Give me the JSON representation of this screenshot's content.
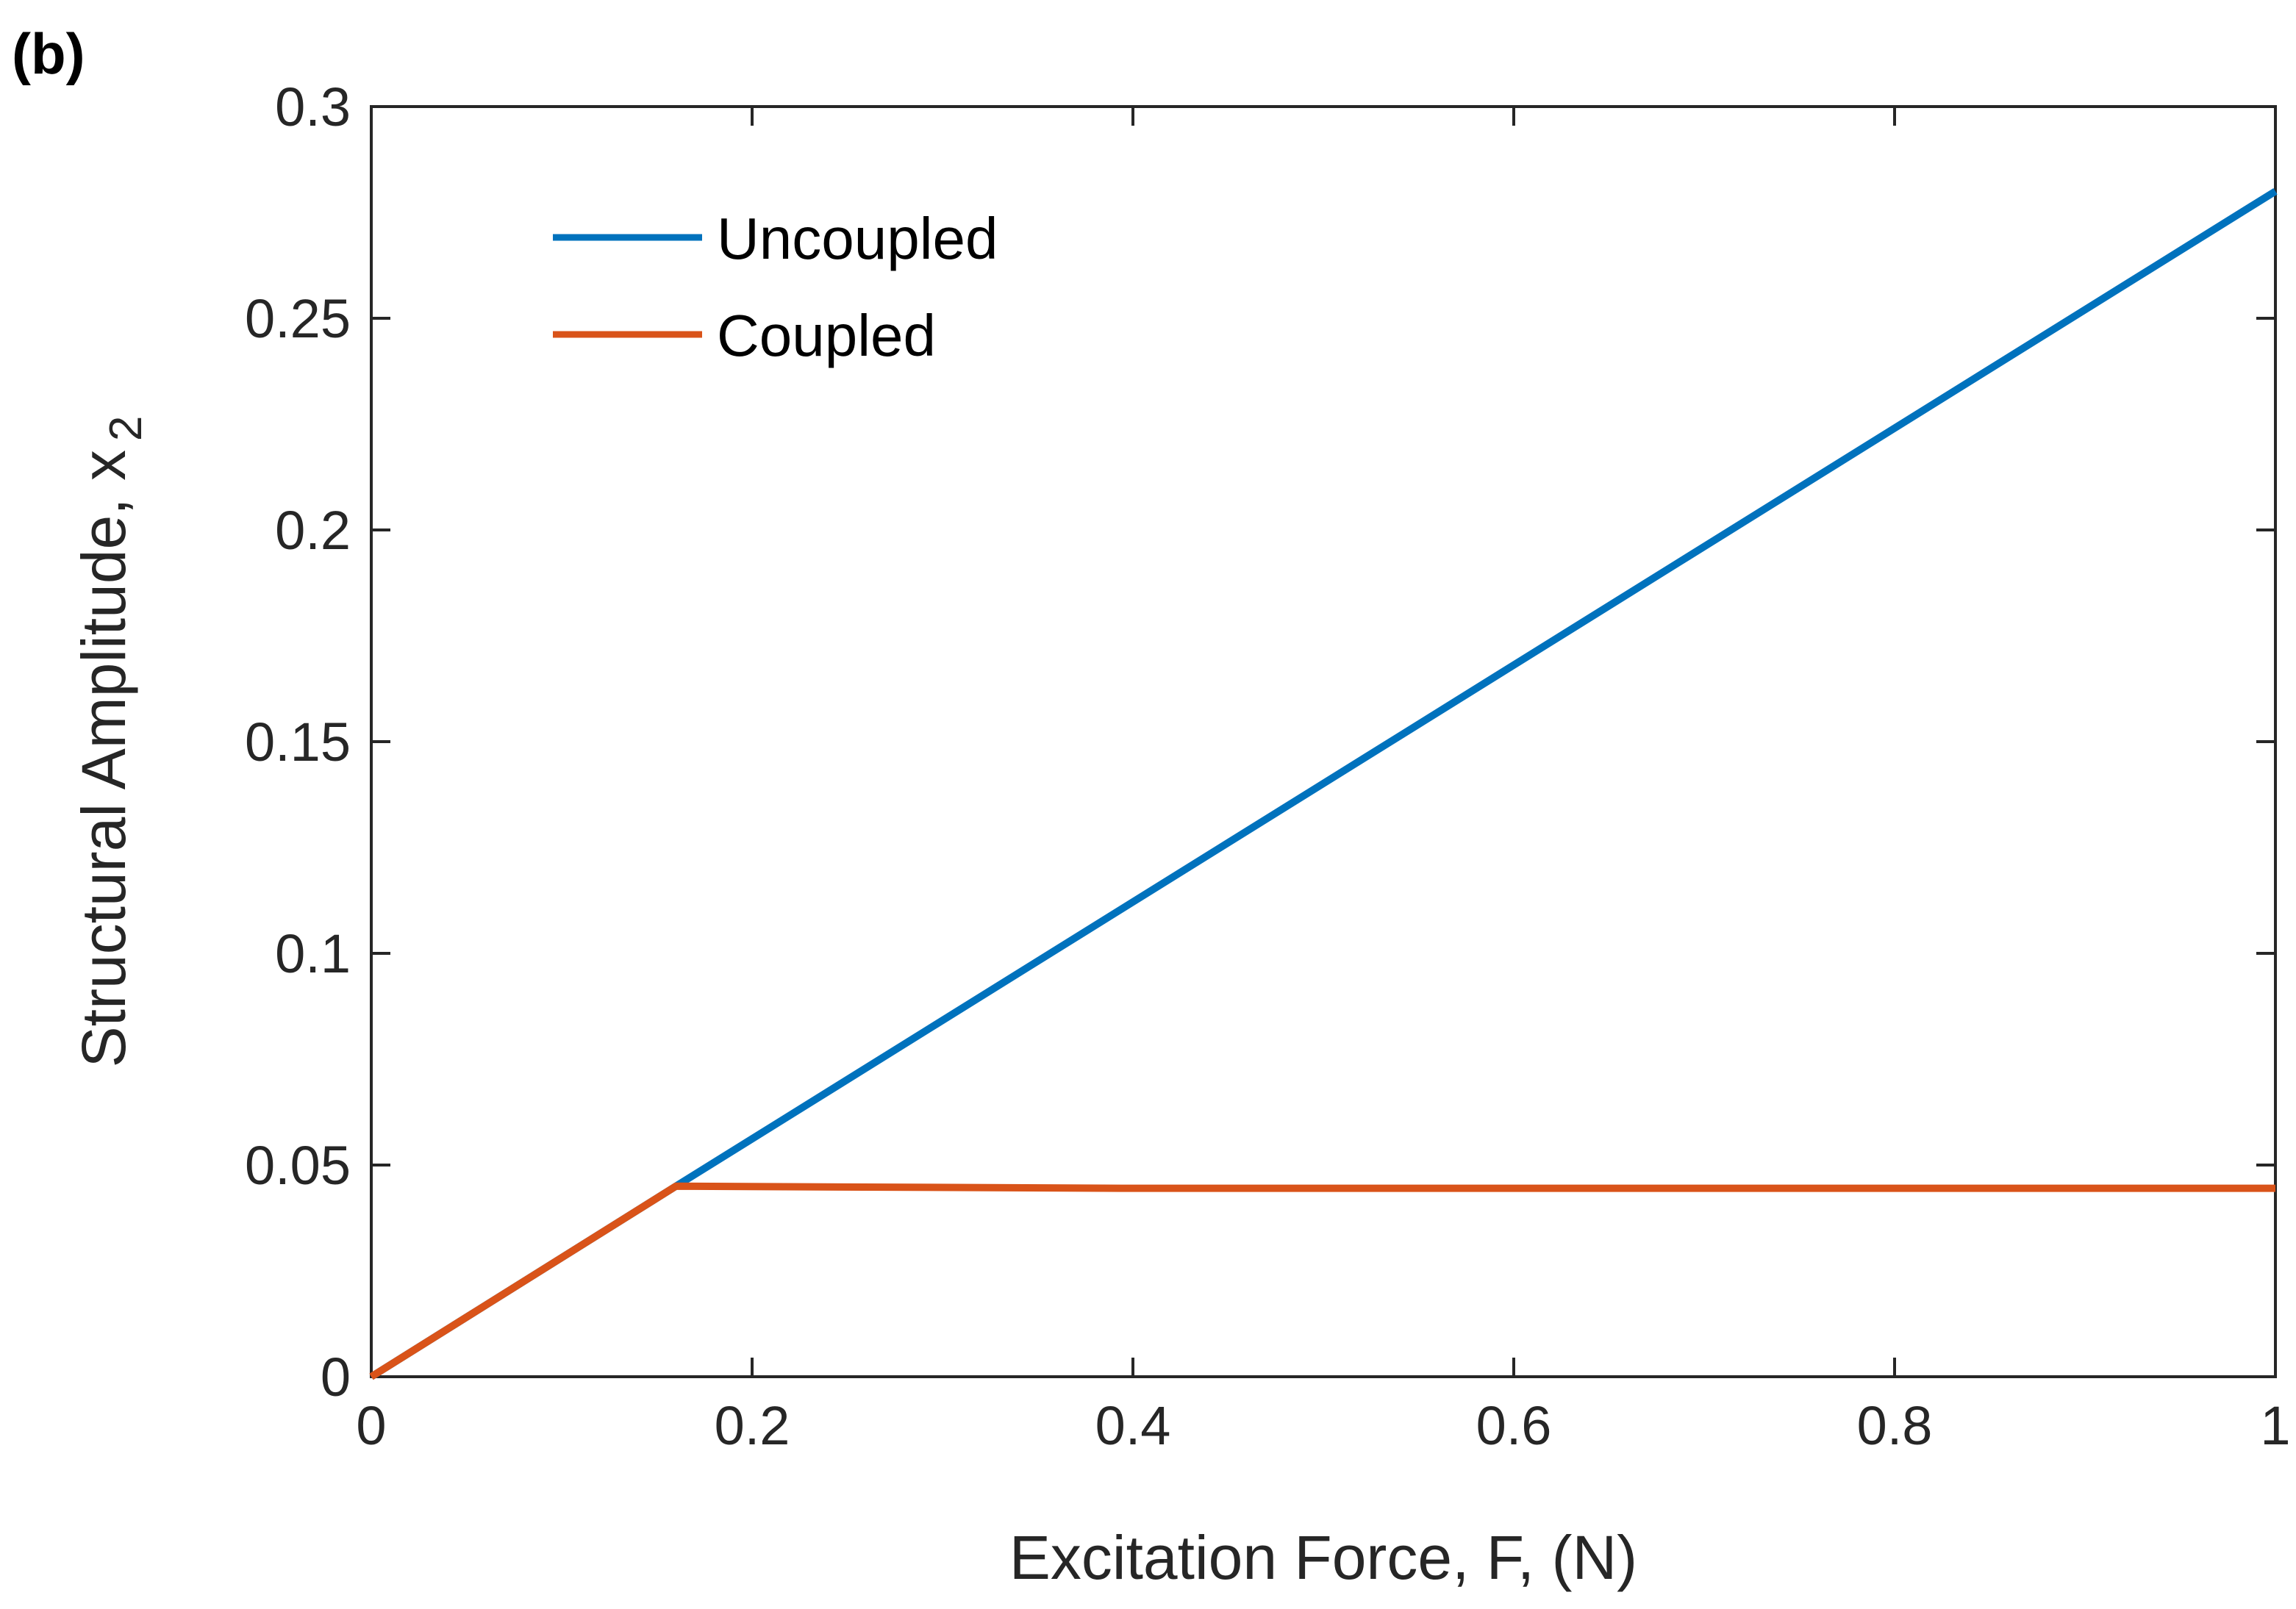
{
  "panel_label": "(b)",
  "colors": {
    "uncoupled": "#0072BD",
    "coupled": "#D95319",
    "axis": "#262626",
    "background": "#ffffff"
  },
  "chart_data": {
    "type": "line",
    "title": "",
    "xlabel": "Excitation Force, F, (N)",
    "ylabel_main": "Structural Amplitude, x",
    "ylabel_subscript": "2",
    "xlim": [
      0,
      1
    ],
    "ylim": [
      0,
      0.3
    ],
    "x_ticks": [
      0,
      0.2,
      0.4,
      0.6,
      0.8,
      1
    ],
    "x_tick_labels": [
      "0",
      "0.2",
      "0.4",
      "0.6",
      "0.8",
      "1"
    ],
    "y_ticks": [
      0,
      0.05,
      0.1,
      0.15,
      0.2,
      0.25,
      0.3
    ],
    "y_tick_labels": [
      "0",
      "0.05",
      "0.1",
      "0.15",
      "0.2",
      "0.25",
      "0.3"
    ],
    "grid": false,
    "legend_position": "top-left",
    "series": [
      {
        "name": "Uncoupled",
        "color": "#0072BD",
        "x": [
          0,
          0.16,
          1
        ],
        "y": [
          0,
          0.045,
          0.28
        ]
      },
      {
        "name": "Coupled",
        "color": "#D95319",
        "x": [
          0,
          0.16,
          0.4,
          1
        ],
        "y": [
          0,
          0.045,
          0.0445,
          0.0445
        ]
      }
    ]
  }
}
